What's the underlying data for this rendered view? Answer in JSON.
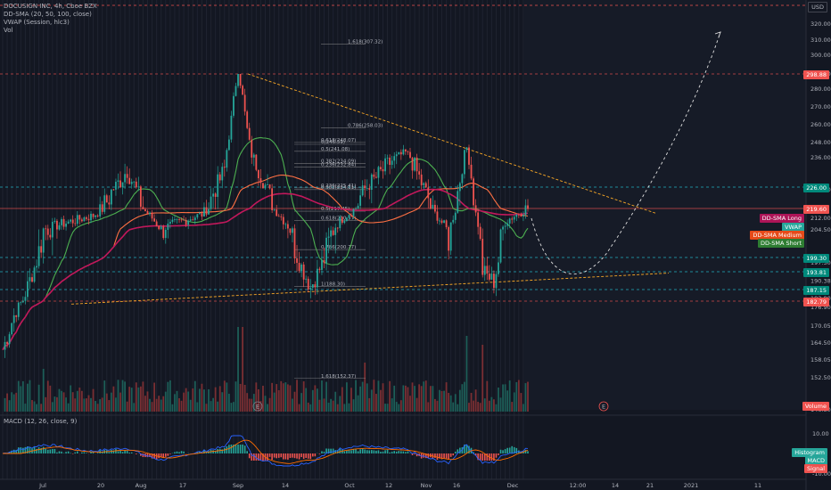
{
  "header": {
    "title": "DOCUSIGN INC, 4h, Cboe BZX",
    "indicator_sma": "DD-SMA (20, 50, 100, close)",
    "indicator_vwap": "VWAP (Session, hlc3)",
    "indicator_vol": "Vol",
    "currency": "USD",
    "macd_legend": "MACD (12, 26, close, 9)"
  },
  "axis_tags": {
    "resistance_top": "298.88",
    "level_226": "226.00",
    "price_now": "219.60",
    "sma_long": "DD-SMA Long",
    "vwap": "VWAP",
    "sma_medium": "DD-SMA Medium",
    "sma_short": "DD-SMA Short",
    "level_199": "199.30",
    "level_193": "193.81",
    "level_187": "187.15",
    "level_182": "182.79",
    "volume": "Volume",
    "histogram": "Histogram",
    "macd": "MACD",
    "signal": "Signal"
  },
  "markers": {
    "e1": "E",
    "e2": "E"
  },
  "colors": {
    "background": "#131722",
    "up": "#26a69a",
    "down": "#ef5350",
    "sma_short": "#4caf50",
    "sma_medium": "#ff7043",
    "sma_long": "#c2185b",
    "teal_level": "#26c6da",
    "red_level": "#ef5350",
    "trend": "#f9a825",
    "projection": "#e0e0e0"
  },
  "chart_data": {
    "type": "candlestick",
    "title": "DOCUSIGN INC, 4h, Cboe BZX",
    "y_range": [
      143,
      330
    ],
    "price_ticks": [
      320,
      310,
      300,
      290,
      280,
      270,
      260,
      248,
      236,
      224,
      212,
      204.5,
      197.3,
      190.38,
      183.8,
      176.9,
      170.05,
      164.5,
      158.05,
      152.5,
      146.3
    ],
    "x_labels": [
      "Jul",
      "20",
      "Aug",
      "17",
      "Sep",
      "14",
      "Oct",
      "12",
      "Nov",
      "16",
      "Dec",
      "12:00",
      "14",
      "21",
      "2021",
      "11"
    ],
    "macd_ticks": [
      10.0,
      0.0,
      -10.0
    ],
    "price_key_points": [
      {
        "bar": 0,
        "price": 162
      },
      {
        "bar": 18,
        "price": 205
      },
      {
        "bar": 40,
        "price": 214
      },
      {
        "bar": 55,
        "price": 232
      },
      {
        "bar": 70,
        "price": 205
      },
      {
        "bar": 88,
        "price": 215
      },
      {
        "bar": 98,
        "price": 232
      },
      {
        "bar": 104,
        "price": 294
      },
      {
        "bar": 110,
        "price": 238
      },
      {
        "bar": 122,
        "price": 215
      },
      {
        "bar": 136,
        "price": 188
      },
      {
        "bar": 150,
        "price": 212
      },
      {
        "bar": 160,
        "price": 225
      },
      {
        "bar": 178,
        "price": 240
      },
      {
        "bar": 188,
        "price": 222
      },
      {
        "bar": 197,
        "price": 203
      },
      {
        "bar": 205,
        "price": 244
      },
      {
        "bar": 212,
        "price": 194
      },
      {
        "bar": 217,
        "price": 190
      },
      {
        "bar": 222,
        "price": 210
      },
      {
        "bar": 232,
        "price": 219.6
      }
    ],
    "fib_levels": [
      {
        "label": "1.618(307.32)",
        "price": 307.32
      },
      {
        "label": "0.786(258.03)",
        "price": 258.03
      },
      {
        "label": "0.618(248.07)",
        "price": 248.07
      },
      {
        "label": "0(246.59)",
        "price": 246.59
      },
      {
        "label": "0.5(241.08)",
        "price": 241.08
      },
      {
        "label": "0.382(234.09)",
        "price": 234.09
      },
      {
        "label": "0.236(232.84)",
        "price": 232.84
      },
      {
        "label": "0.236(225.41)",
        "price": 225.41
      },
      {
        "label": "0.382(224.11)",
        "price": 224.11
      },
      {
        "label": "0.5(217.45)",
        "price": 217.45
      },
      {
        "label": "0.618(210.57)",
        "price": 210.57
      },
      {
        "label": "0.786(200.77)",
        "price": 200.77
      },
      {
        "label": "1(188.30)",
        "price": 188.3
      },
      {
        "label": "1.618(152.37)",
        "price": 152.37
      }
    ],
    "horizontal_levels": [
      298.88,
      226.0,
      219.6,
      199.3,
      193.81,
      187.15,
      182.79
    ]
  }
}
